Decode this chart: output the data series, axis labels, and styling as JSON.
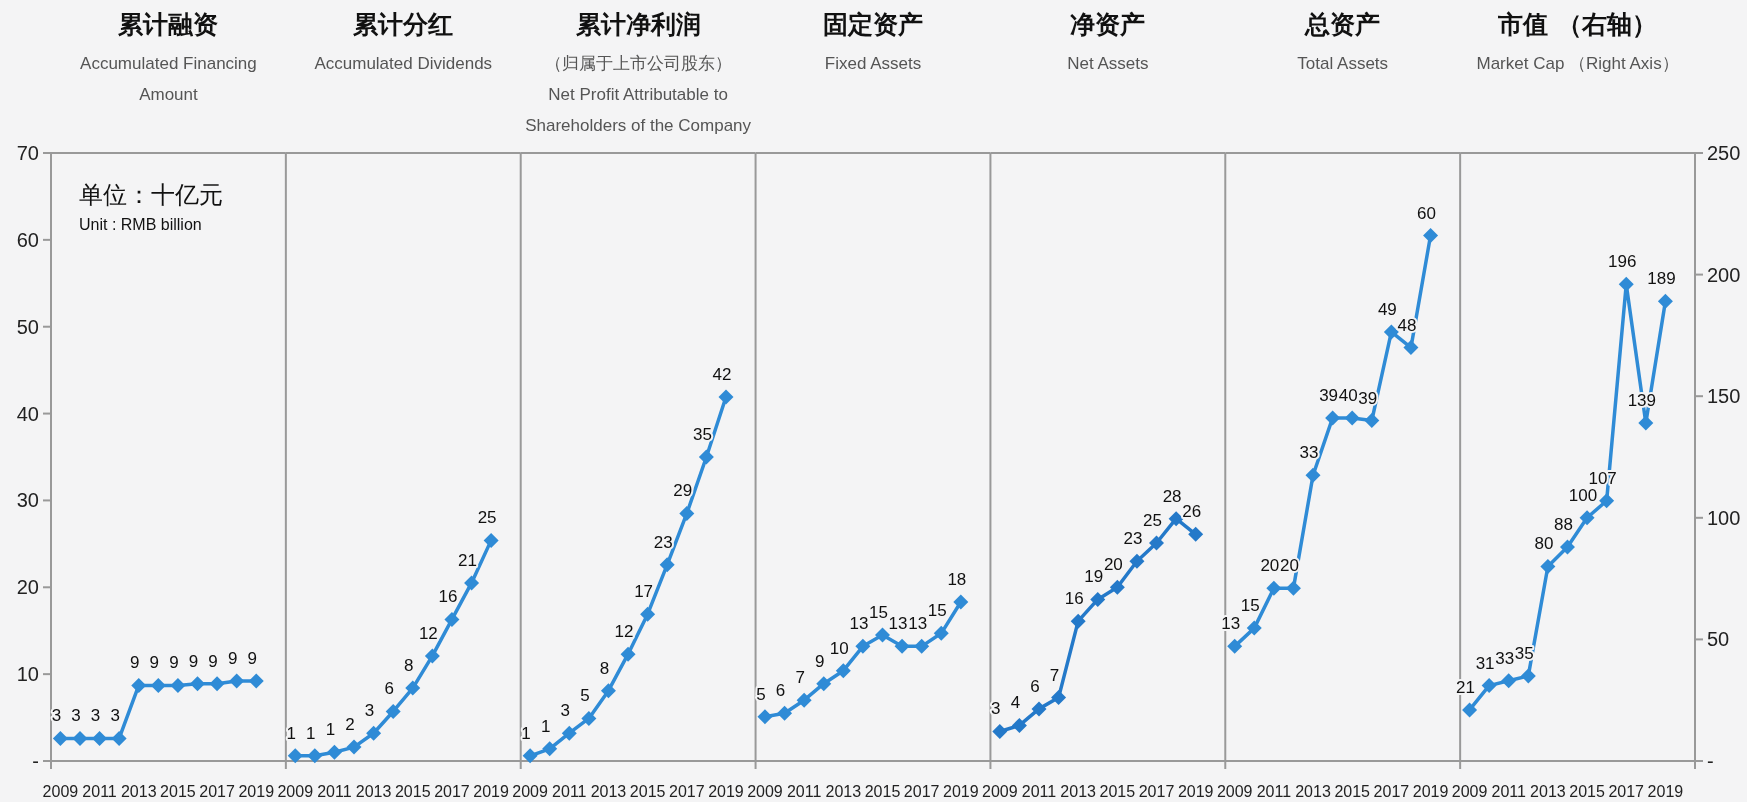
{
  "chart_data": [
    {
      "type": "line",
      "title": "累计融资",
      "subtitle": "Accumulated Financing Amount",
      "categories": [
        "2009",
        null,
        "2011",
        null,
        "2013",
        null,
        "2015",
        null,
        "2017",
        null,
        "2019"
      ],
      "ylim": [
        0,
        70
      ],
      "yticks": [
        {
          "value": 0,
          "label": "-"
        },
        10,
        20,
        30,
        40,
        50,
        60,
        70
      ],
      "marker": "diamond",
      "annotations": [
        "单位：十亿元",
        "Unit : RMB billion"
      ],
      "series": [
        {
          "color": "#2f8bd6",
          "values": [
            2.6,
            2.6,
            2.6,
            2.6,
            8.7,
            8.7,
            8.7,
            8.9,
            8.9,
            9.2,
            9.2
          ],
          "value_labels": [
            "3",
            "3",
            "3",
            "3",
            "9",
            "9",
            "9",
            "9",
            "9",
            "9",
            "9"
          ]
        }
      ]
    },
    {
      "type": "line",
      "title": "累计分红",
      "subtitle": "Accumulated Dividends",
      "categories": [
        "2009",
        null,
        "2011",
        null,
        "2013",
        null,
        "2015",
        null,
        "2017",
        null,
        "2019"
      ],
      "ylim": [
        0,
        70
      ],
      "tick_labels": "x",
      "marker": "diamond",
      "series": [
        {
          "color": "#2f8bd6",
          "values": [
            0.6,
            0.6,
            1.0,
            1.6,
            3.2,
            5.7,
            8.4,
            12.1,
            16.3,
            20.5,
            25.4
          ],
          "value_labels": [
            "1",
            "1",
            "1",
            "2",
            "3",
            "6",
            "8",
            "12",
            "16",
            "21",
            "25"
          ]
        }
      ]
    },
    {
      "type": "line",
      "title": "累计净利润",
      "subtitle": "（归属于上市公司股东）\nNet Profit Attributable to Shareholders of the Company",
      "categories": [
        "2009",
        null,
        "2011",
        null,
        "2013",
        null,
        "2015",
        null,
        "2017",
        null,
        "2019"
      ],
      "ylim": [
        0,
        70
      ],
      "tick_labels": "x",
      "marker": "diamond",
      "series": [
        {
          "color": "#2f8bd6",
          "values": [
            0.6,
            1.4,
            3.2,
            4.9,
            8.1,
            12.3,
            16.9,
            22.6,
            28.5,
            35.0,
            41.9
          ],
          "value_labels": [
            "1",
            "1",
            "3",
            "5",
            "8",
            "12",
            "17",
            "23",
            "29",
            "35",
            "42"
          ]
        }
      ]
    },
    {
      "type": "line",
      "title": "固定资产",
      "subtitle": "Fixed Assets",
      "categories": [
        "2009",
        null,
        "2011",
        null,
        "2013",
        null,
        "2015",
        null,
        "2017",
        null,
        "2019"
      ],
      "ylim": [
        0,
        70
      ],
      "tick_labels": "x",
      "marker": "diamond",
      "series": [
        {
          "color": "#2f8bd6",
          "values": [
            5.1,
            5.5,
            7.0,
            8.9,
            10.4,
            13.2,
            14.5,
            13.2,
            13.2,
            14.7,
            18.3
          ],
          "value_labels": [
            "5",
            "6",
            "7",
            "9",
            "10",
            "13",
            "15",
            "13",
            "13",
            "15",
            "18"
          ]
        }
      ]
    },
    {
      "type": "line",
      "title": "净资产",
      "subtitle": "Net Assets",
      "categories": [
        "2009",
        null,
        "2011",
        null,
        "2013",
        null,
        "2015",
        null,
        "2017",
        null,
        "2019"
      ],
      "ylim": [
        0,
        70
      ],
      "tick_labels": "x",
      "marker": "diamond",
      "series": [
        {
          "color": "#2479c9",
          "values": [
            3.4,
            4.1,
            6.0,
            7.3,
            16.1,
            18.6,
            20.0,
            23.0,
            25.1,
            27.9,
            26.1
          ],
          "value_labels": [
            "3",
            "4",
            "6",
            "7",
            "16",
            "19",
            "20",
            "23",
            "25",
            "28",
            "26"
          ]
        }
      ]
    },
    {
      "type": "line",
      "title": "总资产",
      "subtitle": "Total Assets",
      "categories": [
        "2009",
        null,
        "2011",
        null,
        "2013",
        null,
        "2015",
        null,
        "2017",
        null,
        "2019"
      ],
      "ylim": [
        0,
        70
      ],
      "tick_labels": "x",
      "marker": "diamond",
      "series": [
        {
          "color": "#2f8bd6",
          "values": [
            13.2,
            15.3,
            19.9,
            19.9,
            32.9,
            39.5,
            39.5,
            39.2,
            49.4,
            47.6,
            60.5
          ],
          "value_labels": [
            "13",
            "15",
            "20",
            "20",
            "33",
            "39",
            "40",
            "39",
            "49",
            "48",
            "60"
          ]
        }
      ]
    },
    {
      "type": "line",
      "title": "市值 （右轴）",
      "subtitle": "Market Cap （Right Axis）",
      "categories": [
        "2009",
        null,
        "2011",
        null,
        "2013",
        null,
        "2015",
        null,
        "2017",
        null,
        "2019"
      ],
      "y2lim": [
        0,
        250
      ],
      "y2ticks": [
        {
          "value": 0,
          "label": "-"
        },
        50,
        100,
        150,
        200,
        250
      ],
      "marker": "diamond",
      "series": [
        {
          "color": "#2f8bd6",
          "axis": "y2",
          "values": [
            21,
            31,
            33,
            35,
            80,
            88,
            100,
            107,
            196,
            139,
            189
          ],
          "value_labels": [
            "21",
            "31",
            "33",
            "35",
            "80",
            "88",
            "100",
            "107",
            "196",
            "139",
            "189"
          ]
        }
      ]
    }
  ]
}
